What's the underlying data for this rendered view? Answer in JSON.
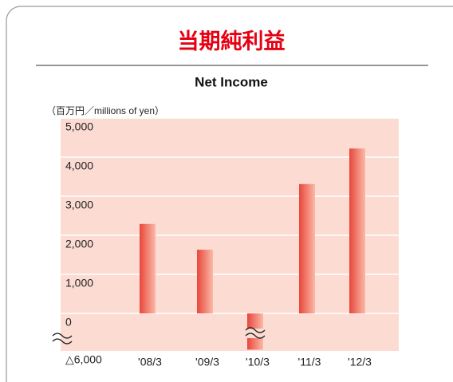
{
  "chart_data": {
    "type": "bar",
    "title": "当期純利益",
    "subtitle": "Net Income",
    "unit_label": "（百万円／millions of yen）",
    "categories": [
      "'08/3",
      "'09/3",
      "'10/3",
      "'11/3",
      "'12/3"
    ],
    "values": [
      2290,
      1630,
      -5800,
      3310,
      4220
    ],
    "color": "#e8473b",
    "ylim": [
      -6000,
      5000
    ],
    "yticks": [
      {
        "value": -6000,
        "label": "△6,000"
      },
      0,
      {
        "value": 1000,
        "label": "1,000"
      },
      {
        "value": 2000,
        "label": "2,000"
      },
      {
        "value": 3000,
        "label": "3,000"
      },
      {
        "value": 4000,
        "label": "4,000"
      },
      {
        "value": 5000,
        "label": "5,000"
      }
    ],
    "grid": true,
    "broken_axis": true
  }
}
